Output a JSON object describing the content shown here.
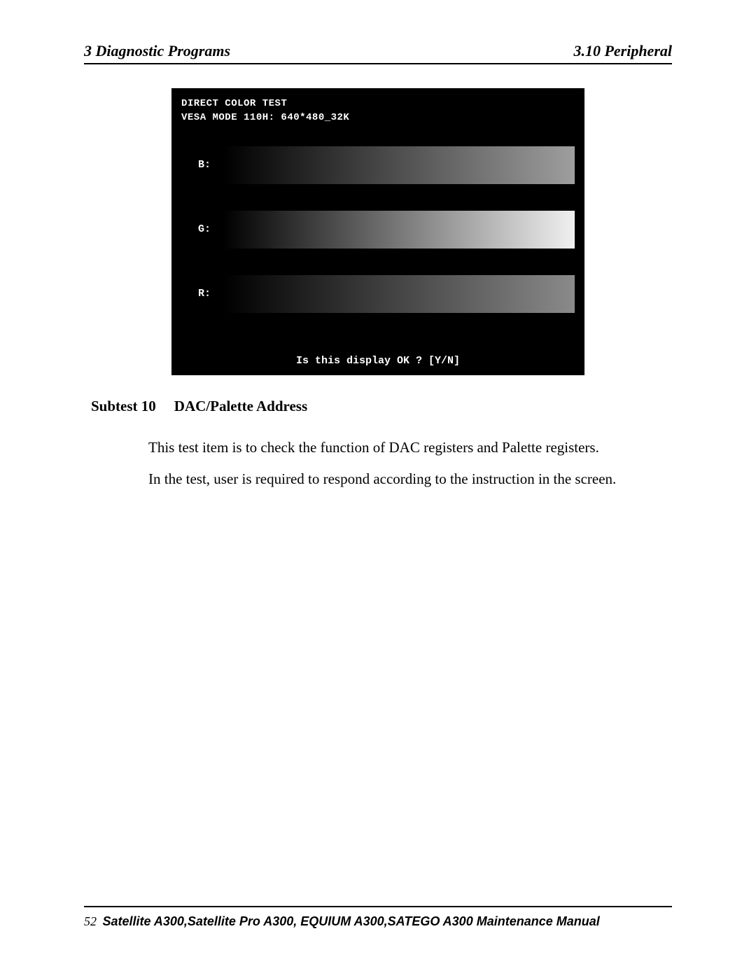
{
  "header": {
    "left": "3  Diagnostic Programs",
    "right": "3.10 Peripheral"
  },
  "screenshot": {
    "title_line1": "DIRECT COLOR TEST",
    "title_line2": "VESA MODE 110H: 640*480_32K",
    "prompt": "Is this display OK ? [Y/N]",
    "bars": [
      {
        "label": "B:",
        "gradient_from": "#000000",
        "gradient_to": "#9e9e9e"
      },
      {
        "label": "G:",
        "gradient_from": "#000000",
        "gradient_to": "#f0f0f0"
      },
      {
        "label": "R:",
        "gradient_from": "#000000",
        "gradient_to": "#8a8a8a"
      }
    ],
    "background_color": "#000000",
    "text_color": "#ffffff"
  },
  "subtest": {
    "label": "Subtest 10",
    "title": "DAC/Palette Address"
  },
  "body_paragraphs": [
    "This test item is to check the function of DAC registers and Palette registers.",
    "In the test, user is required to respond according to the instruction in the screen."
  ],
  "footer": {
    "page_number": "52",
    "manual_title": "Satellite A300,Satellite Pro A300, EQUIUM A300,SATEGO A300 Maintenance Manual"
  }
}
